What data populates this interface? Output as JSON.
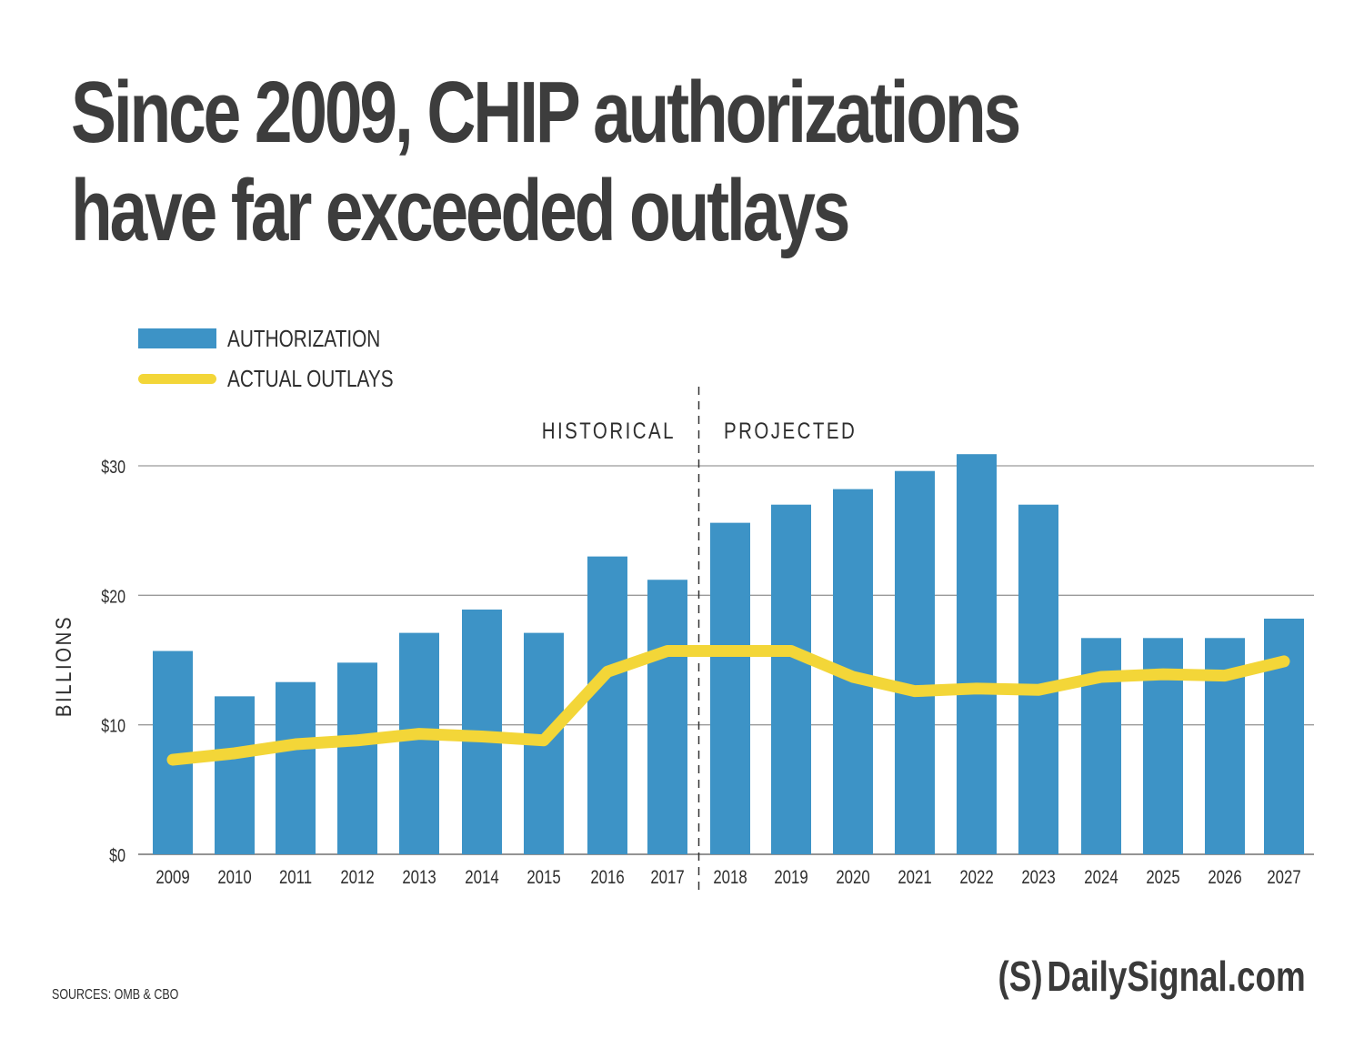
{
  "title_line1": "Since 2009, CHIP authorizations",
  "title_line2": "have far exceeded outlays",
  "legend": {
    "authorization": "AUTHORIZATION",
    "outlays": "ACTUAL OUTLAYS"
  },
  "sources": "SOURCES: OMB & CBO",
  "brand": {
    "logo": "(S)",
    "name": "DailySignal.com"
  },
  "colors": {
    "bar": "#3d93c6",
    "line": "#f3d638",
    "grid": "#9a9a9a",
    "text": "#3a3a3a"
  },
  "chart_data": {
    "type": "bar",
    "title": "Since 2009, CHIP authorizations have far exceeded outlays",
    "xlabel": "",
    "ylabel": "BILLIONS",
    "ylim": [
      0,
      30
    ],
    "yticks": [
      0,
      10,
      20,
      30
    ],
    "ytick_labels": [
      "$0",
      "$10",
      "$20",
      "$30"
    ],
    "grid": true,
    "legend_position": "top-left",
    "categories": [
      "2009",
      "2010",
      "2011",
      "2012",
      "2013",
      "2014",
      "2015",
      "2016",
      "2017",
      "2018",
      "2019",
      "2020",
      "2021",
      "2022",
      "2023",
      "2024",
      "2025",
      "2026",
      "2027"
    ],
    "series": [
      {
        "name": "AUTHORIZATION",
        "type": "bar",
        "values": [
          15.7,
          12.2,
          13.3,
          14.8,
          17.1,
          18.9,
          17.1,
          23.0,
          21.2,
          25.6,
          27.0,
          28.2,
          29.6,
          30.9,
          27.0,
          16.7,
          16.7,
          16.7,
          18.2
        ]
      },
      {
        "name": "ACTUAL OUTLAYS",
        "type": "line",
        "values": [
          7.3,
          7.8,
          8.5,
          8.8,
          9.3,
          9.1,
          8.8,
          14.1,
          15.7,
          15.7,
          15.7,
          13.7,
          12.6,
          12.8,
          12.7,
          13.7,
          13.9,
          13.8,
          14.9
        ]
      }
    ],
    "annotations": [
      {
        "text": "HISTORICAL",
        "region": "2009-2017"
      },
      {
        "text": "PROJECTED",
        "region": "2018-2027"
      }
    ],
    "divider_between": [
      "2017",
      "2018"
    ]
  }
}
